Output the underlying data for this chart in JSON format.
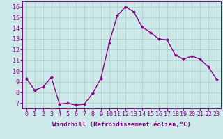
{
  "x": [
    0,
    1,
    2,
    3,
    4,
    5,
    6,
    7,
    8,
    9,
    10,
    11,
    12,
    13,
    14,
    15,
    16,
    17,
    18,
    19,
    20,
    21,
    22,
    23
  ],
  "y": [
    9.3,
    8.2,
    8.5,
    9.4,
    6.9,
    7.0,
    6.8,
    6.9,
    7.9,
    9.3,
    12.6,
    15.2,
    16.0,
    15.5,
    14.1,
    13.6,
    13.0,
    12.9,
    11.5,
    11.1,
    11.4,
    11.1,
    10.4,
    9.2
  ],
  "line_color": "#880088",
  "marker": "D",
  "markersize": 2.0,
  "linewidth": 1.0,
  "bg_color": "#cce8e8",
  "grid_color": "#aacccc",
  "xlabel": "Windchill (Refroidissement éolien,°C)",
  "xlabel_fontsize": 6.5,
  "tick_fontsize": 6.0,
  "xlim": [
    -0.5,
    23.5
  ],
  "ylim": [
    6.5,
    16.5
  ],
  "yticks": [
    7,
    8,
    9,
    10,
    11,
    12,
    13,
    14,
    15,
    16
  ],
  "xticks": [
    0,
    1,
    2,
    3,
    4,
    5,
    6,
    7,
    8,
    9,
    10,
    11,
    12,
    13,
    14,
    15,
    16,
    17,
    18,
    19,
    20,
    21,
    22,
    23
  ]
}
